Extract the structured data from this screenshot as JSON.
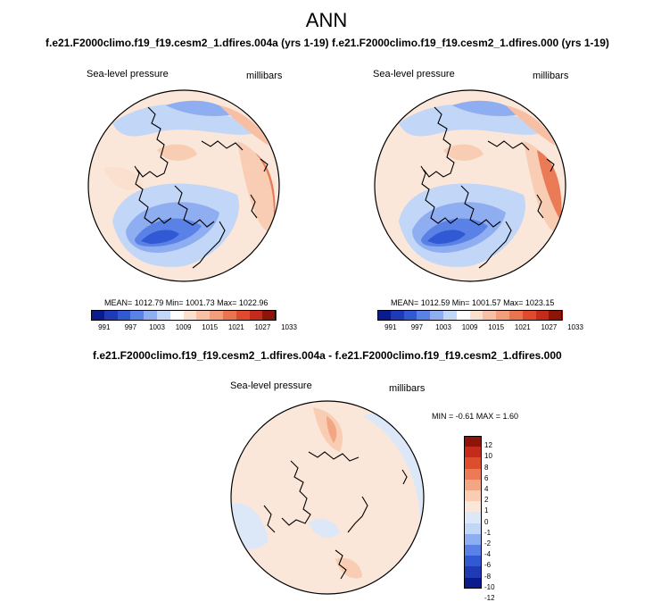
{
  "main_title": "ANN",
  "palette": {
    "abs": [
      "#0b1b8c",
      "#1f3ab5",
      "#3159d4",
      "#5a82e6",
      "#8eaef1",
      "#c2d6f7",
      "#ffffff",
      "#fbe0d0",
      "#f7c0a4",
      "#f29e7a",
      "#ea7350",
      "#dd4a2e",
      "#c42b1a",
      "#8c1408"
    ],
    "diff": [
      "#0b1b8c",
      "#1f3ab5",
      "#3159d4",
      "#5a82e6",
      "#8eaef1",
      "#c2d6f7",
      "#dce8f8",
      "#fbe7d9",
      "#f8cdb3",
      "#f2a684",
      "#ea7b56",
      "#dd4e2f",
      "#c42b1a",
      "#8c1408"
    ]
  },
  "chart_data": [
    {
      "type": "heatmap",
      "projection": "north-polar-stereographic",
      "title": "f.e21.F2000climo.f19_f19.cesm2_1.dfires.004a (yrs 1-19)",
      "left_label": "Sea-level pressure",
      "right_label": "millibars",
      "stats": "MEAN= 1012.79  Min= 1001.73  Max= 1022.96",
      "mean": 1012.79,
      "min": 1001.73,
      "max": 1022.96,
      "colorbar_ticks": [
        "991",
        "997",
        "1003",
        "1009",
        "1015",
        "1021",
        "1027",
        "1033"
      ]
    },
    {
      "type": "heatmap",
      "projection": "north-polar-stereographic",
      "title": "f.e21.F2000climo.f19_f19.cesm2_1.dfires.000 (yrs 1-19)",
      "left_label": "Sea-level pressure",
      "right_label": "millibars",
      "stats": "MEAN= 1012.59  Min= 1001.57  Max= 1023.15",
      "mean": 1012.59,
      "min": 1001.57,
      "max": 1023.15,
      "colorbar_ticks": [
        "991",
        "997",
        "1003",
        "1009",
        "1015",
        "1021",
        "1027",
        "1033"
      ]
    },
    {
      "type": "heatmap",
      "projection": "north-polar-stereographic",
      "title": "f.e21.F2000climo.f19_f19.cesm2_1.dfires.004a - f.e21.F2000climo.f19_f19.cesm2_1.dfires.000",
      "left_label": "Sea-level pressure",
      "right_label": "millibars",
      "stats": "MIN = -0.61 MAX =   1.60",
      "min": -0.61,
      "max": 1.6,
      "colorbar_ticks": [
        "12",
        "10",
        "8",
        "6",
        "4",
        "2",
        "1",
        "0",
        "-1",
        "-2",
        "-4",
        "-6",
        "-8",
        "-10",
        "-12"
      ]
    }
  ]
}
